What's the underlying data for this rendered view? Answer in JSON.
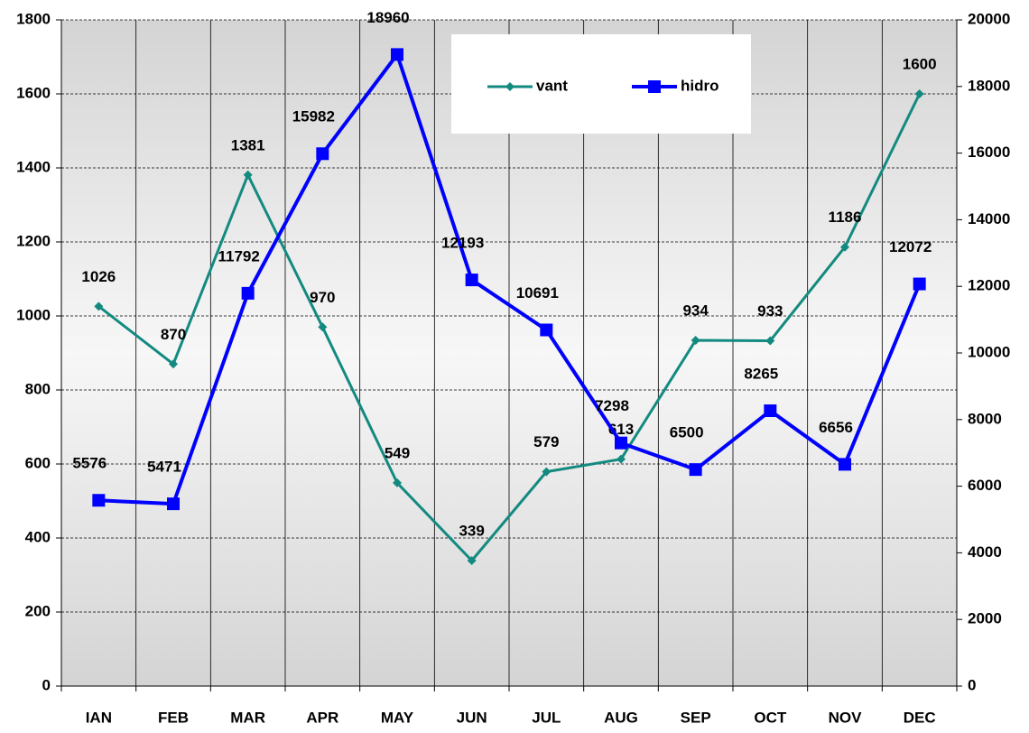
{
  "chart_data": {
    "type": "line",
    "categories": [
      "IAN",
      "FEB",
      "MAR",
      "APR",
      "MAY",
      "JUN",
      "JUL",
      "AUG",
      "SEP",
      "OCT",
      "NOV",
      "DEC"
    ],
    "series": [
      {
        "name": "vant",
        "color": "#138a80",
        "marker": "diamond",
        "values": [
          1026,
          870,
          1381,
          970,
          549,
          339,
          579,
          613,
          934,
          933,
          1186,
          1600
        ]
      },
      {
        "name": "hidro",
        "color": "#0000ff",
        "marker": "square",
        "axis": "y2",
        "values": [
          5576,
          5471,
          11792,
          15982,
          18960,
          12193,
          10691,
          7298,
          6500,
          8265,
          6656,
          12072
        ]
      }
    ],
    "ylim": [
      0,
      1800
    ],
    "yticks": [
      0,
      200,
      400,
      600,
      800,
      1000,
      1200,
      1400,
      1600,
      1800
    ],
    "y2lim": [
      0,
      20000
    ],
    "y2ticks": [
      0,
      2000,
      4000,
      6000,
      8000,
      10000,
      12000,
      14000,
      16000,
      18000,
      20000
    ],
    "grid": true,
    "legend": "top"
  }
}
